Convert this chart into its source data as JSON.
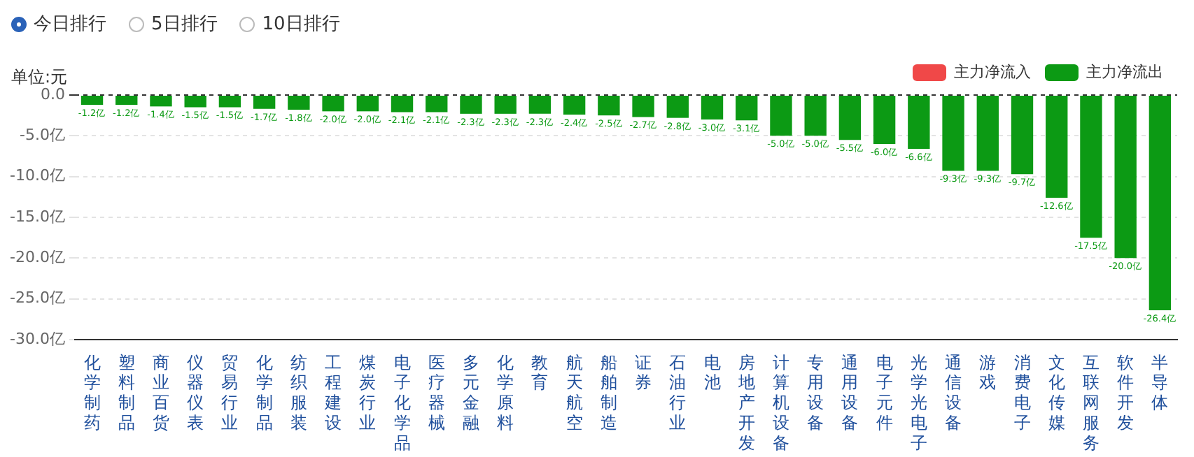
{
  "chart_data": {
    "type": "bar",
    "ylabel": "单位:元",
    "annotations": [
      "今日排行",
      "5日排行",
      "10日排行"
    ],
    "categories": [
      "化学制药",
      "塑料制品",
      "商业百货",
      "仪器仪表",
      "贸易行业",
      "化学制品",
      "纺织服装",
      "工程建设",
      "煤炭行业",
      "电子化学品",
      "医疗器械",
      "多元金融",
      "化学原料",
      "教育",
      "航天航空",
      "船舶制造",
      "证券",
      "石油行业",
      "电池",
      "房地产开发",
      "计算机设备",
      "专用设备",
      "通用设备",
      "电子元件",
      "光学光电子",
      "通信设备",
      "游戏",
      "消费电子",
      "文化传媒",
      "互联网服务",
      "软件开发",
      "半导体"
    ],
    "series": [
      {
        "name": "主力净流入",
        "color": "#f04848",
        "values": [
          null,
          null,
          null,
          null,
          null,
          null,
          null,
          null,
          null,
          null,
          null,
          null,
          null,
          null,
          null,
          null,
          null,
          null,
          null,
          null,
          null,
          null,
          null,
          null,
          null,
          null,
          null,
          null,
          null,
          null,
          null,
          null
        ]
      },
      {
        "name": "主力净流出",
        "color": "#0c9a14",
        "values": [
          -1.2,
          -1.2,
          -1.4,
          -1.5,
          -1.5,
          -1.7,
          -1.8,
          -2.0,
          -2.0,
          -2.1,
          -2.1,
          -2.3,
          -2.3,
          -2.3,
          -2.4,
          -2.5,
          -2.7,
          -2.8,
          -3.0,
          -3.1,
          -5.0,
          -5.0,
          -5.5,
          -6.0,
          -6.6,
          -9.3,
          -9.3,
          -9.7,
          -12.6,
          -17.5,
          -20.0,
          -26.4
        ],
        "value_labels": [
          "-1.2亿",
          "-1.2亿",
          "-1.4亿",
          "-1.5亿",
          "-1.5亿",
          "-1.7亿",
          "-1.8亿",
          "-2.0亿",
          "-2.0亿",
          "-2.1亿",
          "-2.1亿",
          "-2.3亿",
          "-2.3亿",
          "-2.3亿",
          "-2.4亿",
          "-2.5亿",
          "-2.7亿",
          "-2.8亿",
          "-3.0亿",
          "-3.1亿",
          "-5.0亿",
          "-5.0亿",
          "-5.5亿",
          "-6.0亿",
          "-6.6亿",
          "-9.3亿",
          "-9.3亿",
          "-9.7亿",
          "-12.6亿",
          "-17.5亿",
          "-20.0亿",
          "-26.4亿"
        ]
      }
    ],
    "ylim": [
      -30,
      0
    ],
    "yticks": [
      {
        "value": 0,
        "label": "0.0"
      },
      {
        "value": -5,
        "label": "-5.0亿"
      },
      {
        "value": -10,
        "label": "-10.0亿"
      },
      {
        "value": -15,
        "label": "-15.0亿"
      },
      {
        "value": -20,
        "label": "-20.0亿"
      },
      {
        "value": -25,
        "label": "-25.0亿"
      },
      {
        "value": -30,
        "label": "-30.0亿"
      }
    ],
    "grid": "y",
    "legend": "top right"
  }
}
